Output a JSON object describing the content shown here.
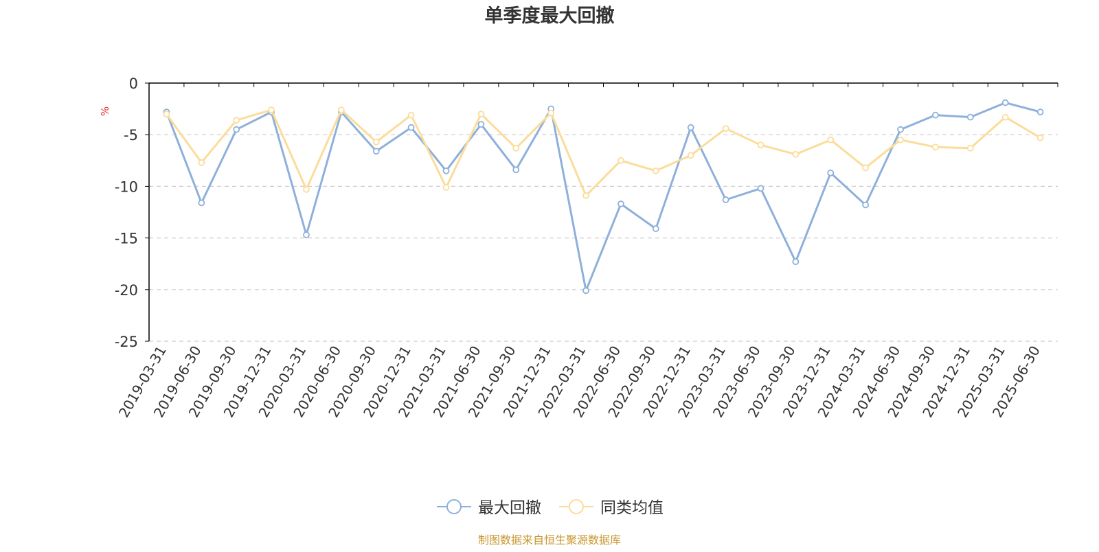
{
  "chart_data": {
    "type": "line",
    "title": "单季度最大回撤",
    "ylabel": "%",
    "ylim": [
      -25,
      0
    ],
    "yticks": [
      0,
      -5,
      -10,
      -15,
      -20,
      -25
    ],
    "grid": true,
    "legend_position": "bottom-center",
    "categories": [
      "2019-03-31",
      "2019-06-30",
      "2019-09-30",
      "2019-12-31",
      "2020-03-31",
      "2020-06-30",
      "2020-09-30",
      "2020-12-31",
      "2021-03-31",
      "2021-06-30",
      "2021-09-30",
      "2021-12-31",
      "2022-03-31",
      "2022-06-30",
      "2022-09-30",
      "2022-12-31",
      "2023-03-31",
      "2023-06-30",
      "2023-09-30",
      "2023-12-31",
      "2024-03-31",
      "2024-06-30",
      "2024-09-30",
      "2024-12-31",
      "2025-03-31",
      "2025-06-30"
    ],
    "series": [
      {
        "name": "最大回撤",
        "color": "#8eb0da",
        "values": [
          -2.8,
          -11.6,
          -4.5,
          -2.8,
          -14.7,
          -2.8,
          -6.6,
          -4.3,
          -8.5,
          -4.0,
          -8.4,
          -2.5,
          -20.1,
          -11.7,
          -14.1,
          -4.3,
          -11.3,
          -10.2,
          -17.3,
          -8.7,
          -11.8,
          -4.5,
          -3.1,
          -3.3,
          -1.9,
          -2.8
        ]
      },
      {
        "name": "同类均值",
        "color": "#fbdc9a",
        "values": [
          -3.0,
          -7.7,
          -3.6,
          -2.6,
          -10.3,
          -2.6,
          -5.7,
          -3.1,
          -10.1,
          -3.0,
          -6.3,
          -2.9,
          -10.9,
          -7.5,
          -8.5,
          -7.0,
          -4.4,
          -6.0,
          -6.9,
          -5.5,
          -8.2,
          -5.5,
          -6.2,
          -6.3,
          -3.3,
          -5.3
        ]
      }
    ],
    "source": "制图数据来自恒生聚源数据库"
  },
  "colors": {
    "title": "#333333",
    "axis": "#000000",
    "tick_text": "#333333",
    "grid": "#cccccc",
    "ylabel": "#e03030",
    "source": "#c8962e"
  }
}
